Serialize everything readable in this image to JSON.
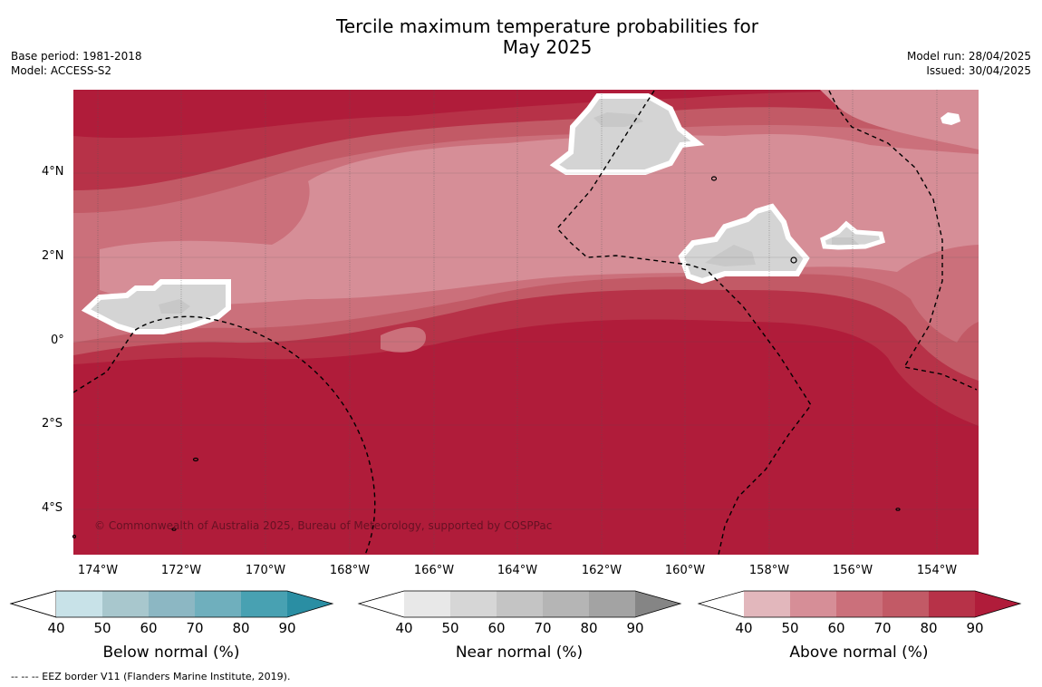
{
  "title_line1": "Tercile maximum temperature probabilities for",
  "title_line2": "May 2025",
  "base_period": "Base period: 1981-2018",
  "model": "Model: ACCESS-S2",
  "model_run": "Model run: 28/04/2025",
  "issued": "Issued: 30/04/2025",
  "lat_labels": [
    "4°N",
    "2°N",
    "0°",
    "2°S",
    "4°S"
  ],
  "lon_labels": [
    "174°W",
    "172°W",
    "170°W",
    "168°W",
    "166°W",
    "164°W",
    "162°W",
    "160°W",
    "158°W",
    "156°W",
    "154°W"
  ],
  "copyright": "© Commonwealth of Australia 2025, Bureau of Meteorology, supported by COSPPac",
  "colorbars": [
    {
      "title": "Below normal (%)",
      "ticks": [
        "40",
        "50",
        "60",
        "70",
        "80",
        "90"
      ],
      "colors": [
        "#ffffff",
        "#c8e2e8",
        "#a8c7cd",
        "#8cb7c3",
        "#6fafbd",
        "#48a1b2",
        "#2a8ea3"
      ]
    },
    {
      "title": "Near normal (%)",
      "ticks": [
        "40",
        "50",
        "60",
        "70",
        "80",
        "90"
      ],
      "colors": [
        "#ffffff",
        "#e8e8e8",
        "#d6d6d6",
        "#c4c4c4",
        "#b5b5b5",
        "#a3a3a3",
        "#858585"
      ]
    },
    {
      "title": "Above normal (%)",
      "ticks": [
        "40",
        "50",
        "60",
        "70",
        "80",
        "90"
      ],
      "colors": [
        "#ffffff",
        "#e2b7bc",
        "#d68e97",
        "#cb707b",
        "#c25a66",
        "#b73248",
        "#b01c3a"
      ]
    }
  ],
  "eez_note": "--  --  -- EEZ border V11 (Flanders Marine Institute, 2019)."
}
